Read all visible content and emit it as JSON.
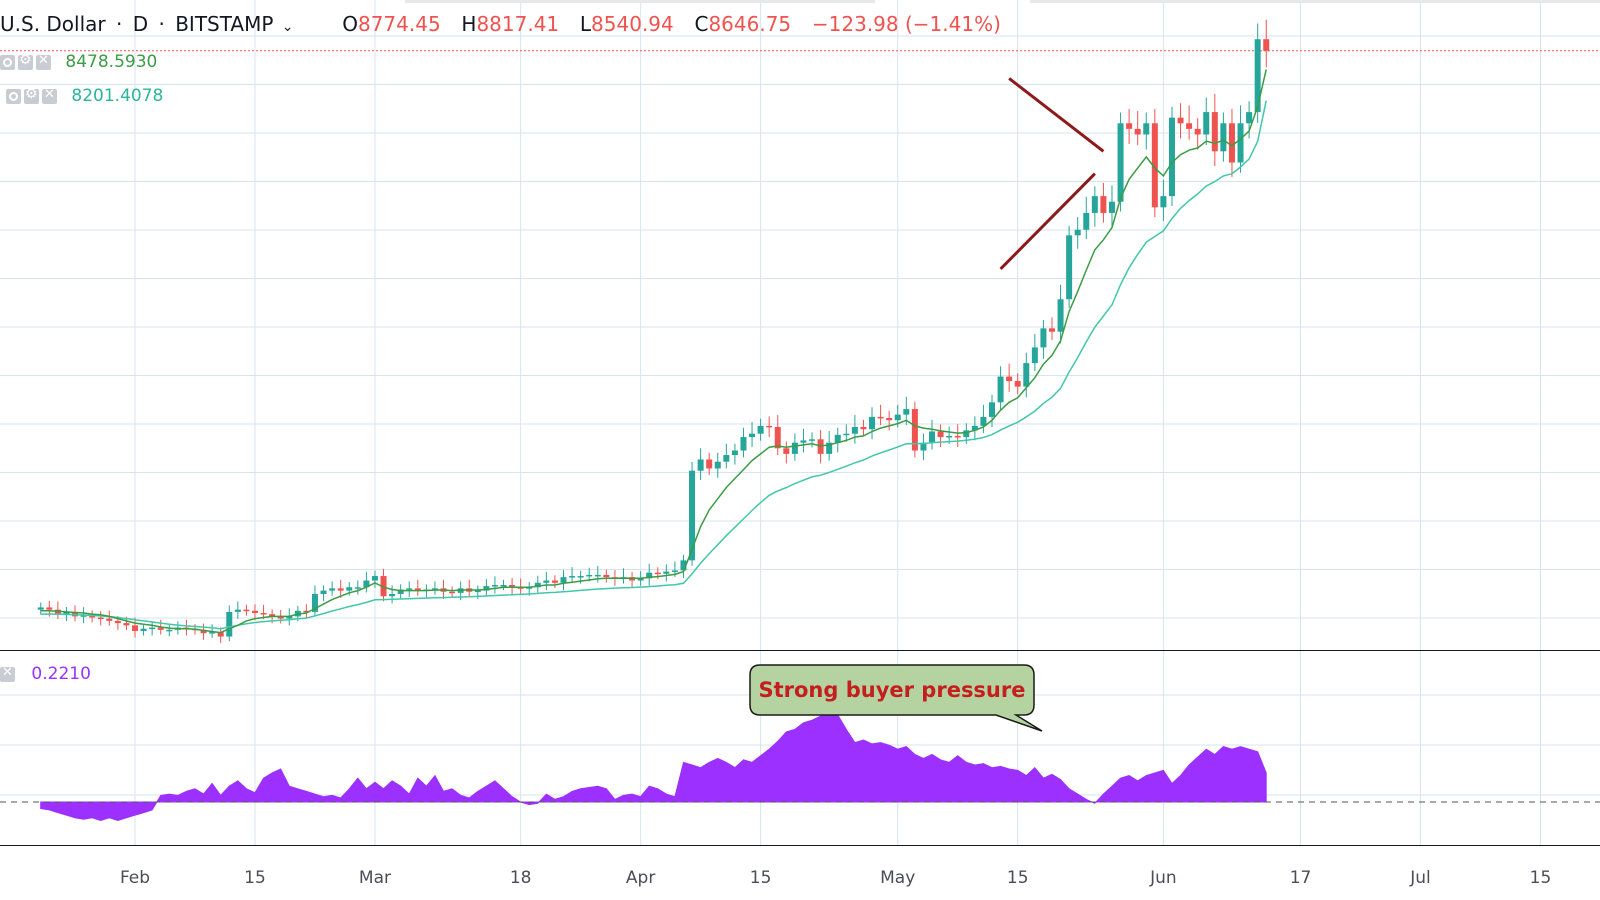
{
  "header": {
    "symbol": "U.S. Dollar",
    "separator": "·",
    "interval": "D",
    "separator2": "·",
    "exchange": "BITSTAMP",
    "ohlc": {
      "o_label": "O",
      "o_value": "8774.45",
      "h_label": "H",
      "h_value": "8817.41",
      "l_label": "L",
      "l_value": "8540.94",
      "c_label": "C",
      "c_value": "8646.75",
      "change": "−123.98 (−1.41%)"
    }
  },
  "indicators": [
    {
      "value": "8478.5930",
      "color": "#3a9c45"
    },
    {
      "value": "8201.4078",
      "color": "#2bb59b"
    }
  ],
  "oscillator": {
    "value": "0.2210",
    "color": "#9b30ff"
  },
  "annotation": {
    "text": "Strong buyer pressure"
  },
  "colors": {
    "up": "#26a69a",
    "down": "#ef5350",
    "ma_fast": "#3a9c45",
    "ma_slow": "#41c8a8",
    "oscillator_fill": "#9b30ff",
    "triangle": "#8b1a1a",
    "price_line": "#ef5350",
    "grid": "#d6e4ef"
  },
  "chart_data": {
    "type": "candlestick",
    "x_axis_labels": [
      "Feb",
      "15",
      "Mar",
      "18",
      "Apr",
      "15",
      "May",
      "15",
      "Jun",
      "17",
      "Jul",
      "15"
    ],
    "x_axis_label_days": [
      31,
      45,
      59,
      76,
      90,
      104,
      120,
      134,
      151,
      167,
      181,
      195
    ],
    "y_range": [
      3300,
      9100
    ],
    "oscillator_range": [
      -0.25,
      1.0
    ],
    "last_price": 8646.75,
    "closes": [
      3680,
      3660,
      3620,
      3640,
      3600,
      3610,
      3590,
      3580,
      3560,
      3540,
      3520,
      3470,
      3490,
      3500,
      3480,
      3480,
      3500,
      3490,
      3480,
      3450,
      3460,
      3420,
      3640,
      3660,
      3650,
      3630,
      3620,
      3600,
      3580,
      3600,
      3650,
      3640,
      3800,
      3830,
      3850,
      3830,
      3860,
      3860,
      3920,
      3960,
      3780,
      3800,
      3840,
      3850,
      3830,
      3840,
      3850,
      3820,
      3810,
      3850,
      3820,
      3830,
      3870,
      3880,
      3880,
      3860,
      3850,
      3860,
      3900,
      3920,
      3900,
      3950,
      3960,
      3960,
      3970,
      3970,
      3950,
      3940,
      3950,
      3920,
      3940,
      3990,
      3980,
      4000,
      4010,
      4100,
      4900,
      5000,
      4920,
      4980,
      5040,
      5080,
      5200,
      5230,
      5300,
      5290,
      5100,
      5050,
      5150,
      5170,
      5180,
      5050,
      5150,
      5220,
      5230,
      5290,
      5270,
      5380,
      5370,
      5350,
      5400,
      5450,
      5080,
      5150,
      5250,
      5200,
      5210,
      5200,
      5260,
      5300,
      5380,
      5510,
      5740,
      5700,
      5650,
      5860,
      6000,
      6170,
      6140,
      6430,
      7000,
      7050,
      7200,
      7350,
      7200,
      7300,
      8000,
      7950,
      7900,
      8000,
      7250,
      7350,
      8050,
      8000,
      7950,
      7900,
      8100,
      7750,
      8000,
      7650,
      8000,
      8100,
      8750,
      8646.75
    ],
    "ma_fast": [
      3650,
      3650,
      3645,
      3640,
      3635,
      3630,
      3620,
      3615,
      3600,
      3580,
      3560,
      3540,
      3530,
      3520,
      3505,
      3495,
      3490,
      3490,
      3485,
      3475,
      3465,
      3455,
      3490,
      3520,
      3560,
      3580,
      3590,
      3600,
      3600,
      3600,
      3620,
      3630,
      3670,
      3710,
      3750,
      3780,
      3810,
      3830,
      3860,
      3900,
      3860,
      3840,
      3830,
      3830,
      3830,
      3830,
      3835,
      3835,
      3830,
      3835,
      3835,
      3835,
      3840,
      3850,
      3860,
      3860,
      3860,
      3860,
      3870,
      3880,
      3880,
      3895,
      3905,
      3915,
      3925,
      3935,
      3940,
      3940,
      3942,
      3940,
      3940,
      3950,
      3955,
      3965,
      3975,
      4000,
      4200,
      4400,
      4550,
      4650,
      4750,
      4830,
      4910,
      4990,
      5050,
      5110,
      5120,
      5110,
      5120,
      5130,
      5140,
      5120,
      5130,
      5150,
      5170,
      5200,
      5210,
      5250,
      5280,
      5300,
      5320,
      5350,
      5300,
      5280,
      5270,
      5255,
      5245,
      5235,
      5240,
      5260,
      5290,
      5350,
      5440,
      5510,
      5550,
      5640,
      5730,
      5850,
      5930,
      6060,
      6320,
      6500,
      6690,
      6870,
      6960,
      7070,
      7330,
      7500,
      7600,
      7700,
      7600,
      7530,
      7650,
      7720,
      7760,
      7780,
      7840,
      7820,
      7850,
      7800,
      7860,
      7930,
      8150,
      8478.59
    ],
    "ma_slow": [
      3620,
      3620,
      3620,
      3618,
      3615,
      3612,
      3608,
      3604,
      3598,
      3590,
      3580,
      3570,
      3560,
      3550,
      3540,
      3530,
      3522,
      3515,
      3510,
      3504,
      3498,
      3490,
      3505,
      3520,
      3535,
      3545,
      3553,
      3560,
      3565,
      3570,
      3578,
      3585,
      3605,
      3625,
      3648,
      3668,
      3688,
      3705,
      3725,
      3748,
      3750,
      3752,
      3755,
      3758,
      3760,
      3763,
      3766,
      3768,
      3770,
      3773,
      3775,
      3778,
      3782,
      3786,
      3790,
      3793,
      3796,
      3800,
      3805,
      3810,
      3814,
      3820,
      3826,
      3832,
      3838,
      3844,
      3848,
      3852,
      3856,
      3858,
      3861,
      3866,
      3871,
      3877,
      3883,
      3895,
      3980,
      4075,
      4160,
      4240,
      4320,
      4395,
      4470,
      4545,
      4615,
      4680,
      4720,
      4750,
      4785,
      4815,
      4845,
      4860,
      4885,
      4912,
      4940,
      4970,
      4995,
      5030,
      5060,
      5085,
      5112,
      5140,
      5140,
      5143,
      5150,
      5155,
      5160,
      5164,
      5172,
      5182,
      5196,
      5222,
      5262,
      5300,
      5332,
      5380,
      5432,
      5500,
      5556,
      5635,
      5780,
      5910,
      6050,
      6180,
      6280,
      6380,
      6560,
      6710,
      6830,
      6940,
      6990,
      7040,
      7150,
      7240,
      7310,
      7370,
      7440,
      7480,
      7530,
      7550,
      7610,
      7680,
      7840,
      8201.41
    ],
    "oscillator": [
      -0.05,
      -0.06,
      -0.08,
      -0.1,
      -0.12,
      -0.13,
      -0.12,
      -0.14,
      -0.12,
      -0.14,
      -0.12,
      -0.1,
      -0.08,
      -0.06,
      0.05,
      0.06,
      0.05,
      0.08,
      0.1,
      0.06,
      0.14,
      0.05,
      0.12,
      0.16,
      0.1,
      0.07,
      0.18,
      0.22,
      0.25,
      0.12,
      0.1,
      0.08,
      0.06,
      0.04,
      0.05,
      0.03,
      0.1,
      0.18,
      0.1,
      0.15,
      0.1,
      0.16,
      0.12,
      0.06,
      0.18,
      0.12,
      0.2,
      0.08,
      0.1,
      0.05,
      0.03,
      0.08,
      0.12,
      0.16,
      0.1,
      0.04,
      0.0,
      -0.02,
      -0.01,
      0.06,
      0.02,
      0.04,
      0.08,
      0.1,
      0.11,
      0.12,
      0.1,
      0.02,
      0.05,
      0.06,
      0.04,
      0.12,
      0.1,
      0.06,
      0.04,
      0.3,
      0.28,
      0.26,
      0.3,
      0.33,
      0.3,
      0.26,
      0.32,
      0.3,
      0.35,
      0.4,
      0.46,
      0.53,
      0.55,
      0.6,
      0.62,
      0.65,
      0.73,
      0.66,
      0.55,
      0.45,
      0.47,
      0.44,
      0.45,
      0.43,
      0.4,
      0.42,
      0.36,
      0.33,
      0.36,
      0.32,
      0.3,
      0.35,
      0.3,
      0.28,
      0.29,
      0.26,
      0.27,
      0.25,
      0.24,
      0.2,
      0.26,
      0.18,
      0.21,
      0.17,
      0.1,
      0.06,
      0.02,
      -0.01,
      0.06,
      0.12,
      0.18,
      0.2,
      0.16,
      0.2,
      0.22,
      0.24,
      0.14,
      0.2,
      0.28,
      0.34,
      0.4,
      0.36,
      0.42,
      0.4,
      0.42,
      0.4,
      0.38,
      0.221
    ]
  }
}
